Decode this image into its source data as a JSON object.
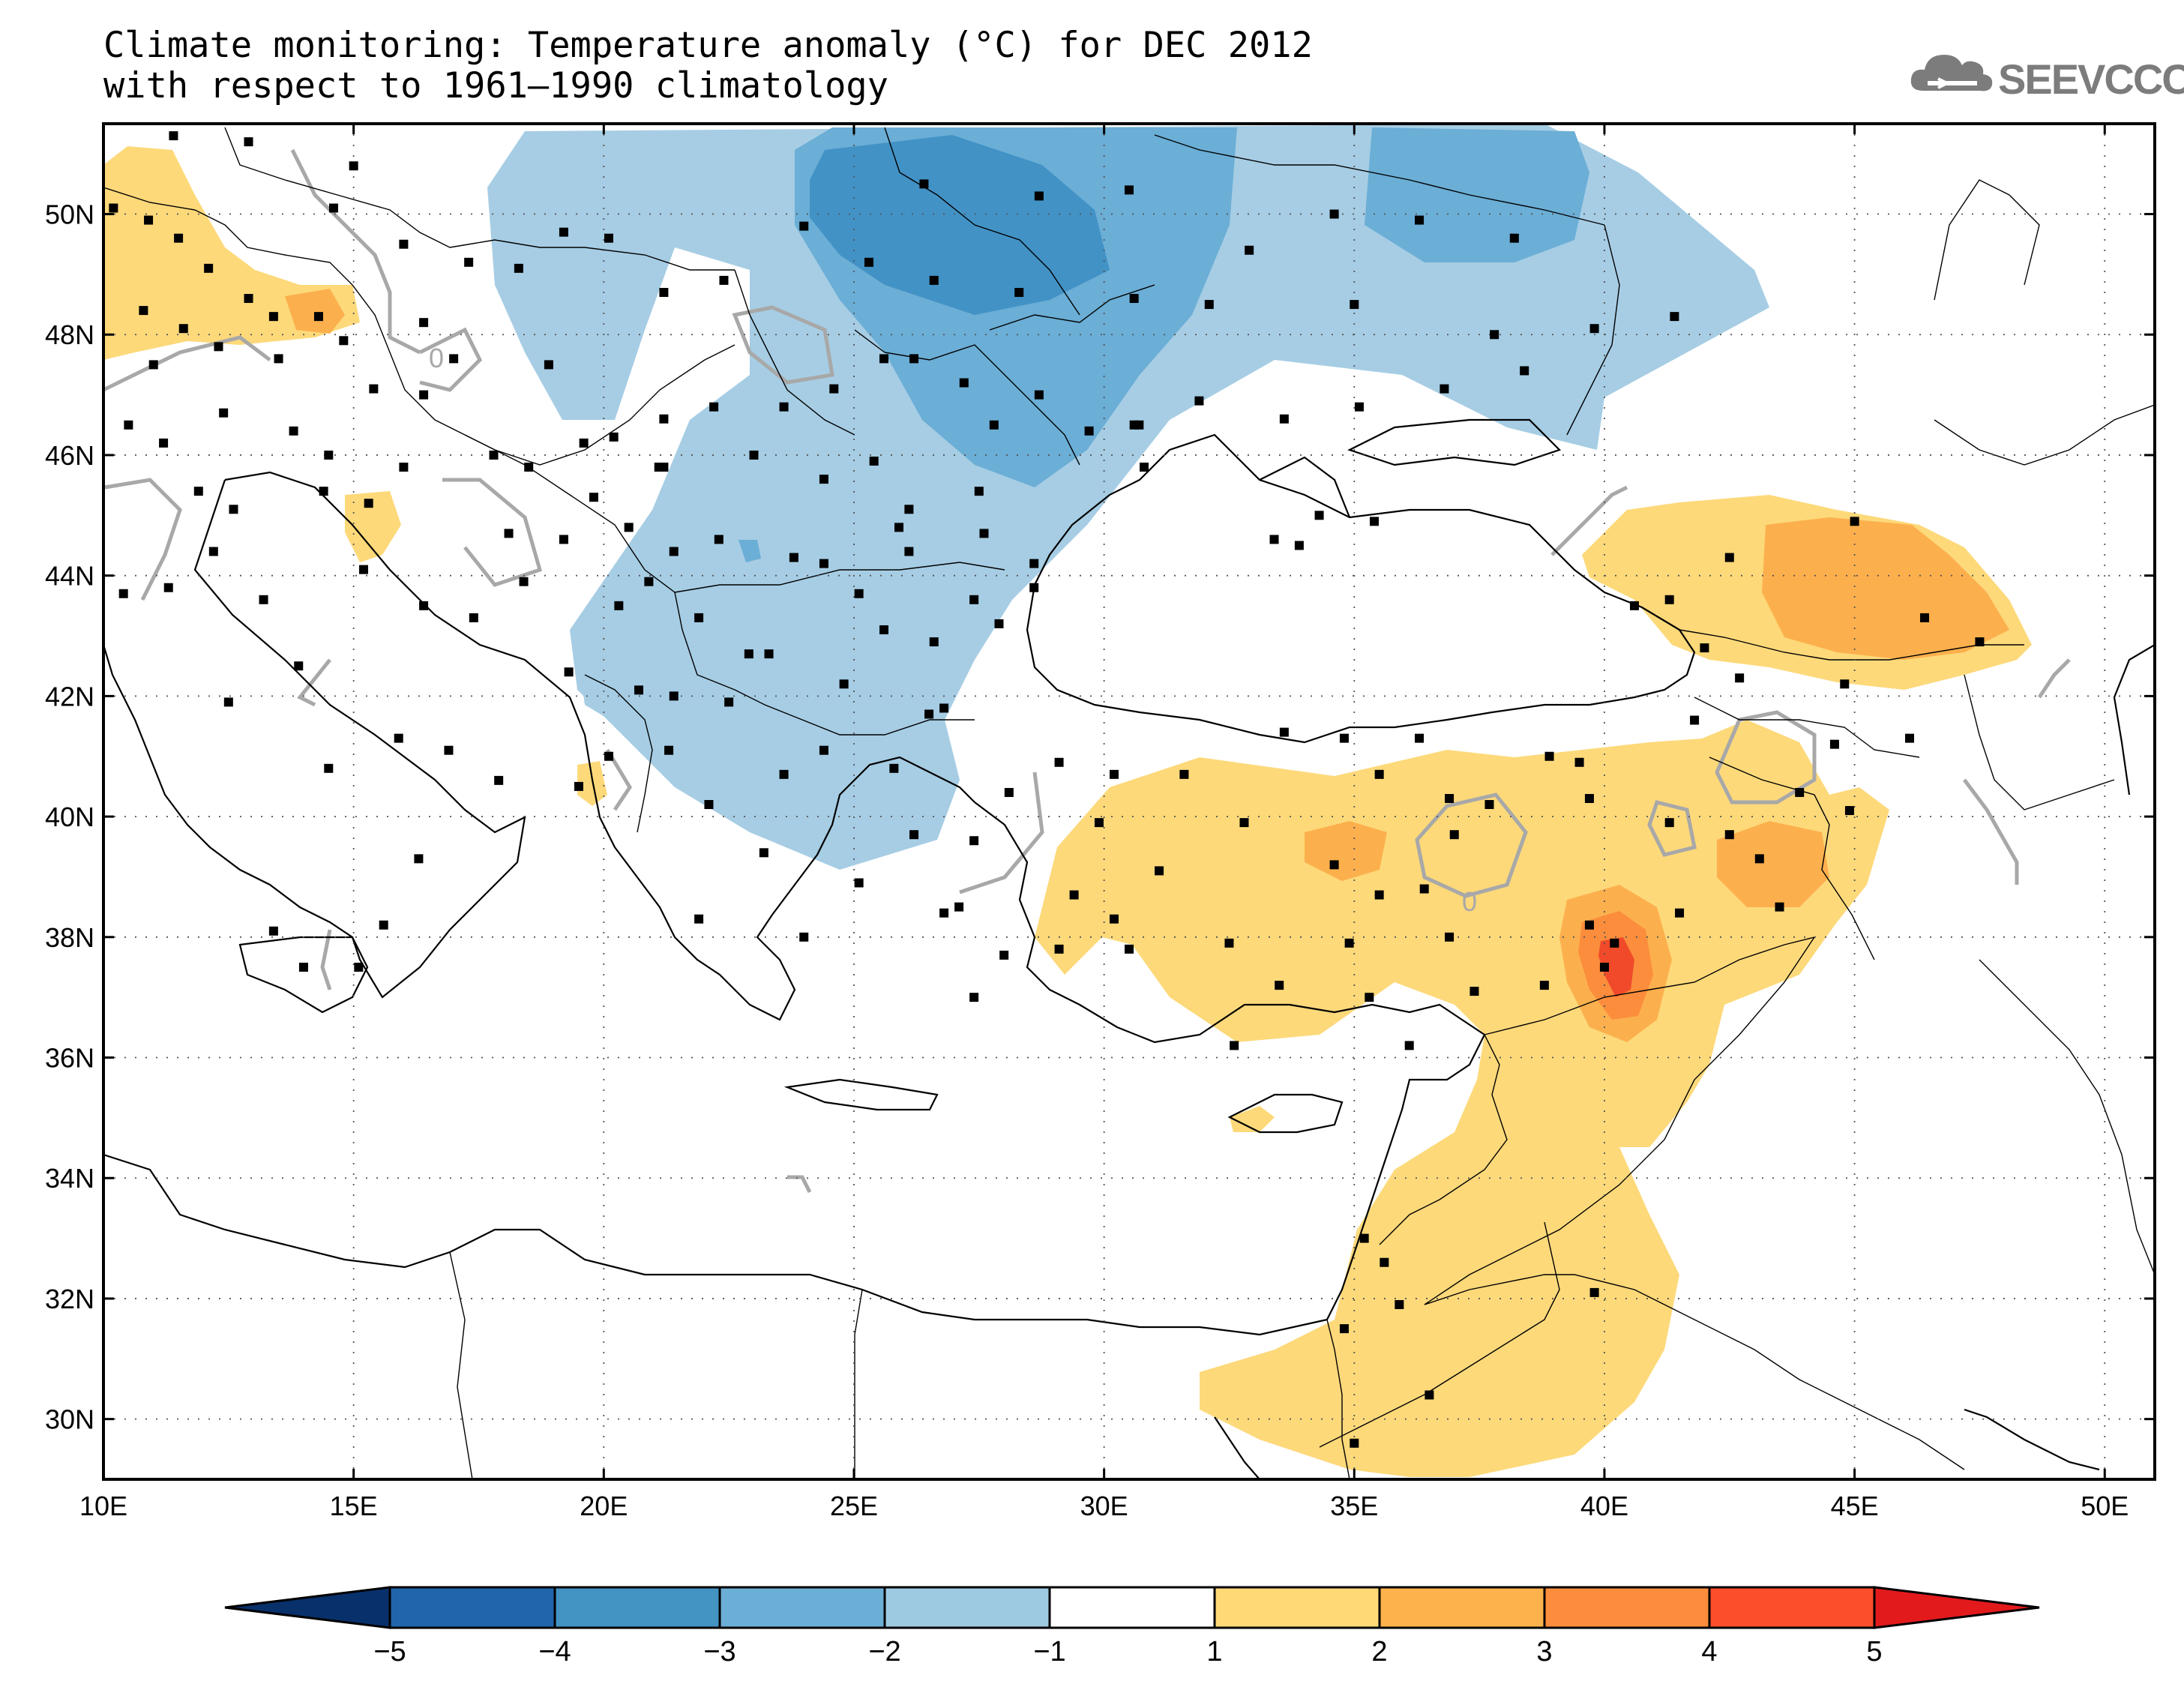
{
  "title": {
    "line1": "Climate monitoring: Temperature anomaly (°C) for DEC 2012",
    "line2": "with respect to 1961–1990 climatology"
  },
  "logo": {
    "text": "SEEVCCC",
    "icon": "cloud-icon"
  },
  "map": {
    "lon_range": [
      10,
      51
    ],
    "lat_range": [
      29,
      51.5
    ],
    "lon_ticks": [
      {
        "value": 10,
        "label": "10E"
      },
      {
        "value": 15,
        "label": "15E"
      },
      {
        "value": 20,
        "label": "20E"
      },
      {
        "value": 25,
        "label": "25E"
      },
      {
        "value": 30,
        "label": "30E"
      },
      {
        "value": 35,
        "label": "35E"
      },
      {
        "value": 40,
        "label": "40E"
      },
      {
        "value": 45,
        "label": "45E"
      },
      {
        "value": 50,
        "label": "50E"
      }
    ],
    "lat_ticks": [
      {
        "value": 30,
        "label": "30N"
      },
      {
        "value": 32,
        "label": "32N"
      },
      {
        "value": 34,
        "label": "34N"
      },
      {
        "value": 36,
        "label": "36N"
      },
      {
        "value": 38,
        "label": "38N"
      },
      {
        "value": 40,
        "label": "40N"
      },
      {
        "value": 42,
        "label": "42N"
      },
      {
        "value": 44,
        "label": "44N"
      },
      {
        "value": 46,
        "label": "46N"
      },
      {
        "value": 48,
        "label": "48N"
      },
      {
        "value": 50,
        "label": "50N"
      }
    ],
    "zero_contour_label": "0",
    "grid": "dotted"
  },
  "colorbar": {
    "levels": [
      -5,
      -4,
      -3,
      -2,
      -1,
      1,
      2,
      3,
      4,
      5
    ],
    "labels": [
      "−5",
      "−4",
      "−3",
      "−2",
      "−1",
      "1",
      "2",
      "3",
      "4",
      "5"
    ],
    "colors": [
      "#08306b",
      "#2166ac",
      "#4393c3",
      "#6baed6",
      "#9ecae1",
      "#ffffff",
      "#fed976",
      "#feb24c",
      "#fd8d3c",
      "#fc4e2a",
      "#e31a1c"
    ]
  },
  "colors": {
    "anom_neg_1": "#a6cde4",
    "anom_neg_2": "#6baed6",
    "anom_neg_3": "#4292c6",
    "anom_pos_1": "#fdd97a",
    "anom_pos_2": "#fcb04d",
    "anom_pos_3": "#fb8d3c",
    "anom_pos_4": "#f04a2a",
    "zero_contour": "#a8a8a8",
    "coastline": "#000000",
    "station": "#000000"
  },
  "stations": [
    [
      10.2,
      50.1
    ],
    [
      10.9,
      49.9
    ],
    [
      11.5,
      49.6
    ],
    [
      12.1,
      49.1
    ],
    [
      10.8,
      48.4
    ],
    [
      11.6,
      48.1
    ],
    [
      12.9,
      48.6
    ],
    [
      14.3,
      48.3
    ],
    [
      13.4,
      48.3
    ],
    [
      11.0,
      47.5
    ],
    [
      12.3,
      47.8
    ],
    [
      13.5,
      47.6
    ],
    [
      14.8,
      47.9
    ],
    [
      16.4,
      48.2
    ],
    [
      15.4,
      47.1
    ],
    [
      17.0,
      47.6
    ],
    [
      18.9,
      47.5
    ],
    [
      16.4,
      47.0
    ],
    [
      10.5,
      46.5
    ],
    [
      11.2,
      46.2
    ],
    [
      12.4,
      46.7
    ],
    [
      13.8,
      46.4
    ],
    [
      14.5,
      46.0
    ],
    [
      16.0,
      45.8
    ],
    [
      17.8,
      46.0
    ],
    [
      18.5,
      45.8
    ],
    [
      19.6,
      46.2
    ],
    [
      20.2,
      46.3
    ],
    [
      21.2,
      46.6
    ],
    [
      22.2,
      46.8
    ],
    [
      23.6,
      46.8
    ],
    [
      24.6,
      47.1
    ],
    [
      25.6,
      47.6
    ],
    [
      26.2,
      47.6
    ],
    [
      27.2,
      47.2
    ],
    [
      27.8,
      46.5
    ],
    [
      28.7,
      47.0
    ],
    [
      29.7,
      46.4
    ],
    [
      30.7,
      46.5
    ],
    [
      31.9,
      46.9
    ],
    [
      33.6,
      46.6
    ],
    [
      35.1,
      46.8
    ],
    [
      36.8,
      47.1
    ],
    [
      38.4,
      47.4
    ],
    [
      39.8,
      48.1
    ],
    [
      37.8,
      48.0
    ],
    [
      35.0,
      48.5
    ],
    [
      32.1,
      48.5
    ],
    [
      30.6,
      48.6
    ],
    [
      28.3,
      48.7
    ],
    [
      26.6,
      48.9
    ],
    [
      25.3,
      49.2
    ],
    [
      24.0,
      49.8
    ],
    [
      26.4,
      50.5
    ],
    [
      28.7,
      50.3
    ],
    [
      30.5,
      50.4
    ],
    [
      32.9,
      49.4
    ],
    [
      34.6,
      50.0
    ],
    [
      36.3,
      49.9
    ],
    [
      38.2,
      49.6
    ],
    [
      41.4,
      48.3
    ],
    [
      19.2,
      49.7
    ],
    [
      20.1,
      49.6
    ],
    [
      18.3,
      49.1
    ],
    [
      21.2,
      48.7
    ],
    [
      22.4,
      48.9
    ],
    [
      17.3,
      49.2
    ],
    [
      16.0,
      49.5
    ],
    [
      14.6,
      50.1
    ],
    [
      12.9,
      51.2
    ],
    [
      11.4,
      51.3
    ],
    [
      15.0,
      50.8
    ],
    [
      15.3,
      45.2
    ],
    [
      14.4,
      45.4
    ],
    [
      15.2,
      44.1
    ],
    [
      16.4,
      43.5
    ],
    [
      17.4,
      43.3
    ],
    [
      18.4,
      43.9
    ],
    [
      18.1,
      44.7
    ],
    [
      19.2,
      44.6
    ],
    [
      19.8,
      45.3
    ],
    [
      20.5,
      44.8
    ],
    [
      21.4,
      44.4
    ],
    [
      20.9,
      43.9
    ],
    [
      20.3,
      43.5
    ],
    [
      21.9,
      43.3
    ],
    [
      22.3,
      44.6
    ],
    [
      21.1,
      45.8
    ],
    [
      19.3,
      42.4
    ],
    [
      20.7,
      42.1
    ],
    [
      21.4,
      42.0
    ],
    [
      22.5,
      41.9
    ],
    [
      21.3,
      41.1
    ],
    [
      20.1,
      41.0
    ],
    [
      19.5,
      40.5
    ],
    [
      22.9,
      42.7
    ],
    [
      23.3,
      42.7
    ],
    [
      24.8,
      42.2
    ],
    [
      25.6,
      43.1
    ],
    [
      26.6,
      42.9
    ],
    [
      27.9,
      43.2
    ],
    [
      28.6,
      43.8
    ],
    [
      27.4,
      43.6
    ],
    [
      25.1,
      43.7
    ],
    [
      24.4,
      44.2
    ],
    [
      23.8,
      44.3
    ],
    [
      25.9,
      44.8
    ],
    [
      26.1,
      44.4
    ],
    [
      27.6,
      44.7
    ],
    [
      28.6,
      44.2
    ],
    [
      26.1,
      45.1
    ],
    [
      24.4,
      45.6
    ],
    [
      23.0,
      46.0
    ],
    [
      21.2,
      45.8
    ],
    [
      25.4,
      45.9
    ],
    [
      27.5,
      45.4
    ],
    [
      12.5,
      41.9
    ],
    [
      13.9,
      42.5
    ],
    [
      14.5,
      40.8
    ],
    [
      15.9,
      41.3
    ],
    [
      16.9,
      41.1
    ],
    [
      17.9,
      40.6
    ],
    [
      16.3,
      39.3
    ],
    [
      15.6,
      38.2
    ],
    [
      13.4,
      38.1
    ],
    [
      14.0,
      37.5
    ],
    [
      15.1,
      37.5
    ],
    [
      11.3,
      43.8
    ],
    [
      10.4,
      43.7
    ],
    [
      12.2,
      44.4
    ],
    [
      11.9,
      45.4
    ],
    [
      9.9,
      45.6
    ],
    [
      13.2,
      43.6
    ],
    [
      12.6,
      45.1
    ],
    [
      21.9,
      38.3
    ],
    [
      22.1,
      40.2
    ],
    [
      23.2,
      39.4
    ],
    [
      24.0,
      38.0
    ],
    [
      25.1,
      38.9
    ],
    [
      23.6,
      40.7
    ],
    [
      24.4,
      41.1
    ],
    [
      26.5,
      41.7
    ],
    [
      26.2,
      39.7
    ],
    [
      25.8,
      40.8
    ],
    [
      26.8,
      38.4
    ],
    [
      27.1,
      38.5
    ],
    [
      28.0,
      37.7
    ],
    [
      29.1,
      37.8
    ],
    [
      27.4,
      37.0
    ],
    [
      26.8,
      41.8
    ],
    [
      28.1,
      40.4
    ],
    [
      29.1,
      40.9
    ],
    [
      30.2,
      40.7
    ],
    [
      31.6,
      40.7
    ],
    [
      32.8,
      39.9
    ],
    [
      33.6,
      41.4
    ],
    [
      34.8,
      41.3
    ],
    [
      36.3,
      41.3
    ],
    [
      37.7,
      40.2
    ],
    [
      39.5,
      40.9
    ],
    [
      39.7,
      40.3
    ],
    [
      41.3,
      39.9
    ],
    [
      42.5,
      39.7
    ],
    [
      43.1,
      39.3
    ],
    [
      43.5,
      38.5
    ],
    [
      41.5,
      38.4
    ],
    [
      40.2,
      37.9
    ],
    [
      38.8,
      37.2
    ],
    [
      37.4,
      37.1
    ],
    [
      35.3,
      37.0
    ],
    [
      34.9,
      37.9
    ],
    [
      33.5,
      37.2
    ],
    [
      32.5,
      37.9
    ],
    [
      31.1,
      39.1
    ],
    [
      30.2,
      38.3
    ],
    [
      29.4,
      38.7
    ],
    [
      27.4,
      39.6
    ],
    [
      29.9,
      39.9
    ],
    [
      30.5,
      37.8
    ],
    [
      32.6,
      36.2
    ],
    [
      36.1,
      36.2
    ],
    [
      36.9,
      38.0
    ],
    [
      36.4,
      38.8
    ],
    [
      35.5,
      38.7
    ],
    [
      34.6,
      39.2
    ],
    [
      37.0,
      39.7
    ],
    [
      35.5,
      40.7
    ],
    [
      38.9,
      41.0
    ],
    [
      41.8,
      41.6
    ],
    [
      42.7,
      42.3
    ],
    [
      44.8,
      42.2
    ],
    [
      44.6,
      41.2
    ],
    [
      44.9,
      40.1
    ],
    [
      42.0,
      42.8
    ],
    [
      41.3,
      43.6
    ],
    [
      40.6,
      43.5
    ],
    [
      42.5,
      44.3
    ],
    [
      45.0,
      44.9
    ],
    [
      46.4,
      43.3
    ],
    [
      47.5,
      42.9
    ],
    [
      43.9,
      40.4
    ],
    [
      46.1,
      41.3
    ],
    [
      40.0,
      37.5
    ],
    [
      39.7,
      38.2
    ],
    [
      36.9,
      40.3
    ],
    [
      35.9,
      31.9
    ],
    [
      35.6,
      32.6
    ],
    [
      36.5,
      30.4
    ],
    [
      39.8,
      32.1
    ],
    [
      35.2,
      33.0
    ],
    [
      34.8,
      31.5
    ],
    [
      35.0,
      29.6
    ],
    [
      30.6,
      46.5
    ],
    [
      30.8,
      45.8
    ],
    [
      33.4,
      44.6
    ],
    [
      34.3,
      45.0
    ],
    [
      35.4,
      44.9
    ],
    [
      33.9,
      44.5
    ]
  ]
}
